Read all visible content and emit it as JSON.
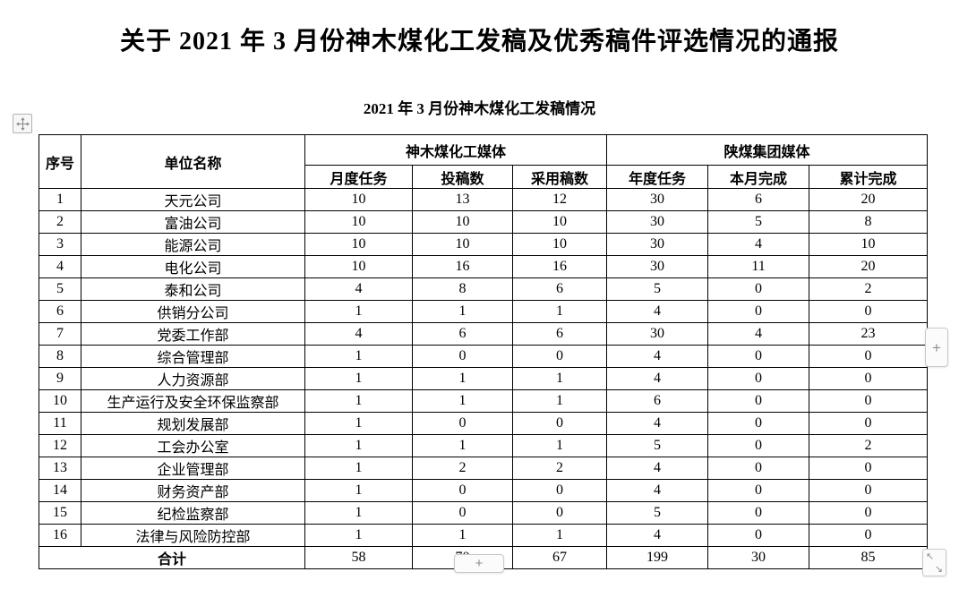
{
  "document": {
    "title": "关于 2021 年 3 月份神木煤化工发稿及优秀稿件评选情况的通报",
    "subtitle": "2021 年 3 月份神木煤化工发稿情况"
  },
  "table": {
    "header": {
      "index": "序号",
      "unit": "单位名称",
      "group_left": "神木煤化工媒体",
      "group_right": "陕煤集团媒体",
      "subheaders": [
        "月度任务",
        "投稿数",
        "采用稿数",
        "年度任务",
        "本月完成",
        "累计完成"
      ]
    },
    "rows": [
      [
        "1",
        "天元公司",
        "10",
        "13",
        "12",
        "30",
        "6",
        "20"
      ],
      [
        "2",
        "富油公司",
        "10",
        "10",
        "10",
        "30",
        "5",
        "8"
      ],
      [
        "3",
        "能源公司",
        "10",
        "10",
        "10",
        "30",
        "4",
        "10"
      ],
      [
        "4",
        "电化公司",
        "10",
        "16",
        "16",
        "30",
        "11",
        "20"
      ],
      [
        "5",
        "泰和公司",
        "4",
        "8",
        "6",
        "5",
        "0",
        "2"
      ],
      [
        "6",
        "供销分公司",
        "1",
        "1",
        "1",
        "4",
        "0",
        "0"
      ],
      [
        "7",
        "党委工作部",
        "4",
        "6",
        "6",
        "30",
        "4",
        "23"
      ],
      [
        "8",
        "综合管理部",
        "1",
        "0",
        "0",
        "4",
        "0",
        "0"
      ],
      [
        "9",
        "人力资源部",
        "1",
        "1",
        "1",
        "4",
        "0",
        "0"
      ],
      [
        "10",
        "生产运行及安全环保监察部",
        "1",
        "1",
        "1",
        "6",
        "0",
        "0"
      ],
      [
        "11",
        "规划发展部",
        "1",
        "0",
        "0",
        "4",
        "0",
        "0"
      ],
      [
        "12",
        "工会办公室",
        "1",
        "1",
        "1",
        "5",
        "0",
        "2"
      ],
      [
        "13",
        "企业管理部",
        "1",
        "2",
        "2",
        "4",
        "0",
        "0"
      ],
      [
        "14",
        "财务资产部",
        "1",
        "0",
        "0",
        "4",
        "0",
        "0"
      ],
      [
        "15",
        "纪检监察部",
        "1",
        "0",
        "0",
        "5",
        "0",
        "0"
      ],
      [
        "16",
        "法律与风险防控部",
        "1",
        "1",
        "1",
        "4",
        "0",
        "0"
      ]
    ],
    "total": {
      "label": "合计",
      "values": [
        "58",
        "70",
        "67",
        "199",
        "30",
        "85"
      ]
    }
  },
  "controls": {
    "add_row_right_label": "+",
    "add_row_bottom_label": "+"
  },
  "colors": {
    "text": "#000000",
    "table_border": "#000000",
    "control_border": "#c9c9c9",
    "control_background": "#fbfbfb",
    "control_glyph": "#8f8f8f"
  }
}
